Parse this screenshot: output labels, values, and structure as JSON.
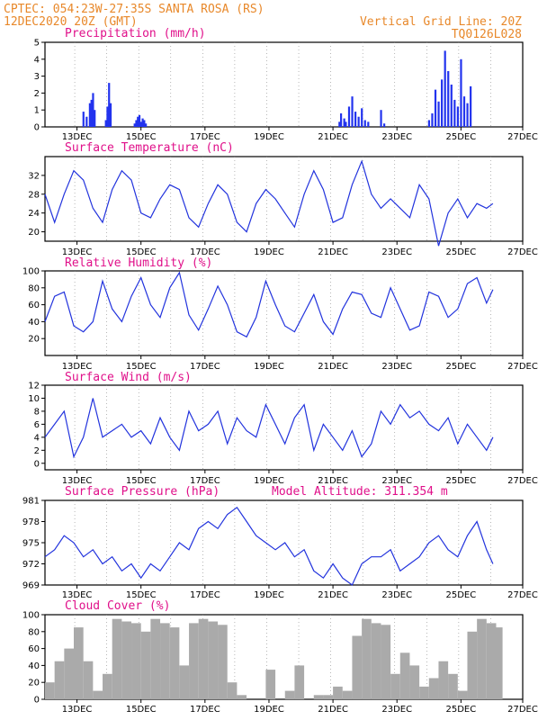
{
  "header": {
    "line1": "CPTEC:  054:23W-27:35S   SANTA ROSA (RS)",
    "line2": "12DEC2020 20Z (GMT)",
    "grid_note": "Vertical Grid Line: 20Z",
    "code": "TQ0126L028"
  },
  "x_tick_labels": [
    "13DEC",
    "15DEC",
    "17DEC",
    "19DEC",
    "21DEC",
    "23DEC",
    "25DEC",
    "27DEC"
  ],
  "colors": {
    "line": "#2233dd",
    "bar": "#2233ee",
    "cloud": "#aaaaaa",
    "title": "#e0108a",
    "header": "#e8882a"
  },
  "chart_data": [
    {
      "type": "bar",
      "title": "Precipitation (mm/h)",
      "ylim": [
        0,
        5
      ],
      "yticks": [
        0,
        1,
        2,
        3,
        4,
        5
      ],
      "x": [
        1.2,
        1.3,
        1.4,
        1.45,
        1.5,
        1.55,
        1.9,
        1.95,
        2.0,
        2.05,
        2.8,
        2.85,
        2.9,
        2.95,
        3.0,
        3.05,
        3.1,
        3.15,
        9.2,
        9.25,
        9.35,
        9.4,
        9.5,
        9.6,
        9.7,
        9.8,
        9.9,
        10.0,
        10.1,
        10.5,
        10.6,
        12.0,
        12.1,
        12.2,
        12.3,
        12.4,
        12.5,
        12.6,
        12.7,
        12.8,
        12.9,
        13.0,
        13.1,
        13.2,
        13.3
      ],
      "values": [
        0.9,
        0.6,
        1.4,
        1.6,
        2.0,
        1.0,
        0.4,
        1.2,
        2.6,
        1.4,
        0.2,
        0.4,
        0.6,
        0.7,
        0.3,
        0.5,
        0.4,
        0.2,
        0.3,
        0.8,
        0.5,
        0.3,
        1.2,
        1.8,
        0.9,
        0.6,
        1.1,
        0.4,
        0.3,
        1.0,
        0.2,
        0.4,
        0.8,
        2.2,
        1.5,
        2.8,
        4.5,
        3.3,
        2.5,
        1.6,
        1.2,
        4.0,
        1.8,
        1.4,
        2.4
      ]
    },
    {
      "type": "line",
      "title": "Surface Temperature (nC)",
      "ylim": [
        18,
        36
      ],
      "yticks": [
        20,
        24,
        28,
        32
      ],
      "x": [
        0,
        0.3,
        0.6,
        0.9,
        1.2,
        1.5,
        1.8,
        2.1,
        2.4,
        2.7,
        3.0,
        3.3,
        3.6,
        3.9,
        4.2,
        4.5,
        4.8,
        5.1,
        5.4,
        5.7,
        6.0,
        6.3,
        6.6,
        6.9,
        7.2,
        7.5,
        7.8,
        8.1,
        8.4,
        8.7,
        9.0,
        9.3,
        9.6,
        9.9,
        10.2,
        10.5,
        10.8,
        11.1,
        11.4,
        11.7,
        12.0,
        12.3,
        12.6,
        12.9,
        13.2,
        13.5,
        13.8,
        14.0
      ],
      "values": [
        28,
        22,
        28,
        33,
        31,
        25,
        22,
        29,
        33,
        31,
        24,
        23,
        27,
        30,
        29,
        23,
        21,
        26,
        30,
        28,
        22,
        20,
        26,
        29,
        27,
        24,
        21,
        28,
        33,
        29,
        22,
        23,
        30,
        35,
        28,
        25,
        27,
        25,
        23,
        30,
        27,
        17,
        24,
        27,
        23,
        26,
        25,
        26
      ]
    },
    {
      "type": "line",
      "title": "Relative Humidity (%)",
      "ylim": [
        0,
        100
      ],
      "yticks": [
        20,
        40,
        60,
        80,
        100
      ],
      "x": [
        0,
        0.3,
        0.6,
        0.9,
        1.2,
        1.5,
        1.8,
        2.1,
        2.4,
        2.7,
        3.0,
        3.3,
        3.6,
        3.9,
        4.2,
        4.5,
        4.8,
        5.1,
        5.4,
        5.7,
        6.0,
        6.3,
        6.6,
        6.9,
        7.2,
        7.5,
        7.8,
        8.1,
        8.4,
        8.7,
        9.0,
        9.3,
        9.6,
        9.9,
        10.2,
        10.5,
        10.8,
        11.1,
        11.4,
        11.7,
        12.0,
        12.3,
        12.6,
        12.9,
        13.2,
        13.5,
        13.8,
        14.0
      ],
      "values": [
        40,
        70,
        75,
        35,
        28,
        40,
        88,
        55,
        40,
        70,
        92,
        60,
        45,
        80,
        98,
        48,
        30,
        55,
        82,
        60,
        28,
        22,
        45,
        88,
        60,
        35,
        28,
        50,
        72,
        40,
        25,
        55,
        75,
        72,
        50,
        45,
        80,
        55,
        30,
        35,
        75,
        70,
        45,
        55,
        85,
        92,
        62,
        78
      ]
    },
    {
      "type": "line",
      "title": "Surface Wind (m/s)",
      "ylim": [
        -1,
        12
      ],
      "yticks": [
        0,
        2,
        4,
        6,
        8,
        10,
        12
      ],
      "x": [
        0,
        0.3,
        0.6,
        0.9,
        1.2,
        1.5,
        1.8,
        2.1,
        2.4,
        2.7,
        3.0,
        3.3,
        3.6,
        3.9,
        4.2,
        4.5,
        4.8,
        5.1,
        5.4,
        5.7,
        6.0,
        6.3,
        6.6,
        6.9,
        7.2,
        7.5,
        7.8,
        8.1,
        8.4,
        8.7,
        9.0,
        9.3,
        9.6,
        9.9,
        10.2,
        10.5,
        10.8,
        11.1,
        11.4,
        11.7,
        12.0,
        12.3,
        12.6,
        12.9,
        13.2,
        13.5,
        13.8,
        14.0
      ],
      "values": [
        4,
        6,
        8,
        1,
        4,
        10,
        4,
        5,
        6,
        4,
        5,
        3,
        7,
        4,
        2,
        8,
        5,
        6,
        8,
        3,
        7,
        5,
        4,
        9,
        6,
        3,
        7,
        9,
        2,
        6,
        4,
        2,
        5,
        1,
        3,
        8,
        6,
        9,
        7,
        8,
        6,
        5,
        7,
        3,
        6,
        4,
        2,
        4
      ]
    },
    {
      "type": "line",
      "title": "Surface Pressure (hPa)",
      "annotation": "Model Altitude: 311.354 m",
      "ylim": [
        969,
        981
      ],
      "yticks": [
        969,
        972,
        975,
        978,
        981
      ],
      "x": [
        0,
        0.3,
        0.6,
        0.9,
        1.2,
        1.5,
        1.8,
        2.1,
        2.4,
        2.7,
        3.0,
        3.3,
        3.6,
        3.9,
        4.2,
        4.5,
        4.8,
        5.1,
        5.4,
        5.7,
        6.0,
        6.3,
        6.6,
        6.9,
        7.2,
        7.5,
        7.8,
        8.1,
        8.4,
        8.7,
        9.0,
        9.3,
        9.6,
        9.9,
        10.2,
        10.5,
        10.8,
        11.1,
        11.4,
        11.7,
        12.0,
        12.3,
        12.6,
        12.9,
        13.2,
        13.5,
        13.8,
        14.0
      ],
      "values": [
        973,
        974,
        976,
        975,
        973,
        974,
        972,
        973,
        971,
        972,
        970,
        972,
        971,
        973,
        975,
        974,
        977,
        978,
        977,
        979,
        980,
        978,
        976,
        975,
        974,
        975,
        973,
        974,
        971,
        970,
        972,
        970,
        969,
        972,
        973,
        973,
        974,
        971,
        972,
        973,
        975,
        976,
        974,
        973,
        976,
        978,
        974,
        972
      ]
    },
    {
      "type": "area",
      "title": "Cloud Cover (%)",
      "ylim": [
        0,
        100
      ],
      "yticks": [
        0,
        20,
        40,
        60,
        80,
        100
      ],
      "x": [
        0,
        0.3,
        0.6,
        0.9,
        1.2,
        1.5,
        1.8,
        2.1,
        2.4,
        2.7,
        3.0,
        3.3,
        3.6,
        3.9,
        4.2,
        4.5,
        4.8,
        5.1,
        5.4,
        5.7,
        6.0,
        6.3,
        6.6,
        6.9,
        7.2,
        7.5,
        7.8,
        8.1,
        8.4,
        8.7,
        9.0,
        9.3,
        9.6,
        9.9,
        10.2,
        10.5,
        10.8,
        11.1,
        11.4,
        11.7,
        12.0,
        12.3,
        12.6,
        12.9,
        13.2,
        13.5,
        13.8,
        14.0
      ],
      "values": [
        20,
        45,
        60,
        85,
        45,
        10,
        30,
        95,
        92,
        90,
        80,
        95,
        90,
        85,
        40,
        90,
        95,
        92,
        88,
        20,
        5,
        0,
        0,
        35,
        0,
        10,
        40,
        0,
        5,
        5,
        15,
        10,
        75,
        95,
        90,
        88,
        30,
        55,
        40,
        15,
        25,
        45,
        30,
        10,
        80,
        95,
        90,
        85
      ]
    }
  ]
}
